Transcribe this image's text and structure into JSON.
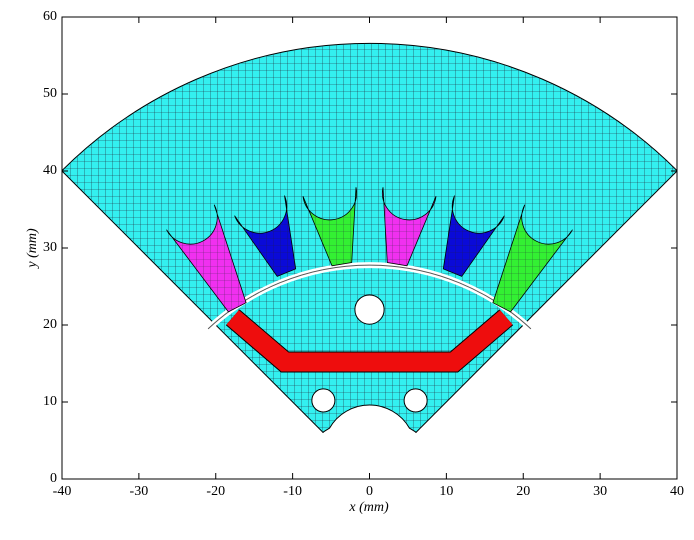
{
  "chart_data": {
    "type": "geometry",
    "x_label": "x (mm)",
    "y_label": "y (mm)",
    "xlim": [
      -40,
      40
    ],
    "ylim": [
      0,
      60
    ],
    "xticks": [
      -40,
      -30,
      -20,
      -10,
      0,
      10,
      20,
      30,
      40
    ],
    "yticks": [
      0,
      10,
      20,
      30,
      40,
      50,
      60
    ]
  }
}
